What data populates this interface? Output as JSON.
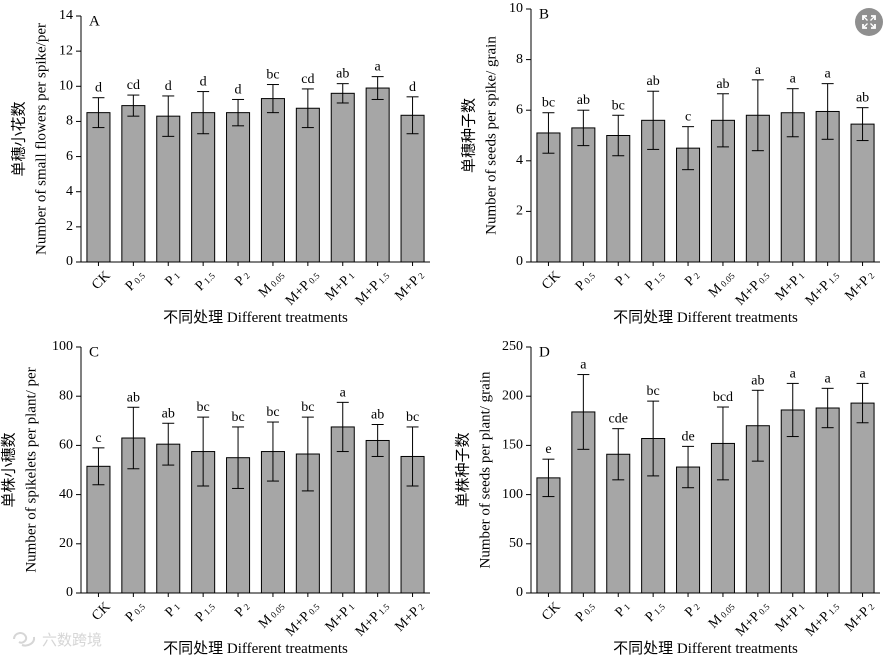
{
  "watermark": {
    "text": "六数跨境",
    "brand_color": "#d6d6d6"
  },
  "expand_button": {
    "icon": "expand-icon",
    "color": "#8f8f8f"
  },
  "style": {
    "bar_fill": "#a6a6a6",
    "bar_stroke": "#000000",
    "text_color": "#000000"
  },
  "chart_data": [
    {
      "panel": "A",
      "type": "bar",
      "ylabel_cn": "单穗小花数",
      "ylabel_en": "Number of small flowers per spike/per",
      "xlabel": "不同处理 Different treatments",
      "ylim": [
        0,
        14
      ],
      "yticks": [
        0,
        2,
        4,
        6,
        8,
        10,
        12,
        14
      ],
      "categories": [
        {
          "base": "CK",
          "sub": ""
        },
        {
          "base": "P",
          "sub": "0.5"
        },
        {
          "base": "P",
          "sub": "1"
        },
        {
          "base": "P",
          "sub": "1.5"
        },
        {
          "base": "P",
          "sub": "2"
        },
        {
          "base": "M",
          "sub": "0.05"
        },
        {
          "base": "M+P",
          "sub": "0.5"
        },
        {
          "base": "M+P",
          "sub": "1"
        },
        {
          "base": "M+P",
          "sub": "1.5"
        },
        {
          "base": "M+P",
          "sub": "2"
        }
      ],
      "values": [
        8.5,
        8.9,
        8.3,
        8.5,
        8.5,
        9.3,
        8.75,
        9.6,
        9.9,
        8.35
      ],
      "errors": [
        0.85,
        0.6,
        1.15,
        1.2,
        0.75,
        0.8,
        1.1,
        0.55,
        0.65,
        1.05
      ],
      "letters": [
        "d",
        "cd",
        "d",
        "d",
        "d",
        "bc",
        "cd",
        "ab",
        "a",
        "d"
      ]
    },
    {
      "panel": "B",
      "type": "bar",
      "ylabel_cn": "单穗种子数",
      "ylabel_en": "Number of seeds per spike/ grain",
      "xlabel": "不同处理 Different treatments",
      "ylim": [
        0,
        10
      ],
      "yticks": [
        0,
        2,
        4,
        6,
        8,
        10
      ],
      "categories": [
        {
          "base": "CK",
          "sub": ""
        },
        {
          "base": "P",
          "sub": "0.5"
        },
        {
          "base": "P",
          "sub": "1"
        },
        {
          "base": "P",
          "sub": "1.5"
        },
        {
          "base": "P",
          "sub": "2"
        },
        {
          "base": "M",
          "sub": "0.05"
        },
        {
          "base": "M+P",
          "sub": "0.5"
        },
        {
          "base": "M+P",
          "sub": "1"
        },
        {
          "base": "M+P",
          "sub": "1.5"
        },
        {
          "base": "M+P",
          "sub": "2"
        }
      ],
      "values": [
        5.1,
        5.3,
        5.0,
        5.6,
        4.5,
        5.6,
        5.8,
        5.9,
        5.95,
        5.45
      ],
      "errors": [
        0.8,
        0.7,
        0.8,
        1.15,
        0.85,
        1.05,
        1.4,
        0.95,
        1.1,
        0.65
      ],
      "letters": [
        "bc",
        "ab",
        "bc",
        "ab",
        "c",
        "ab",
        "a",
        "a",
        "a",
        "ab"
      ]
    },
    {
      "panel": "C",
      "type": "bar",
      "ylabel_cn": "单株小穗数",
      "ylabel_en": "Number of spikelets per plant/ per",
      "xlabel": "不同处理 Different treatments",
      "ylim": [
        0,
        100
      ],
      "yticks": [
        0,
        20,
        40,
        60,
        80,
        100
      ],
      "categories": [
        {
          "base": "CK",
          "sub": ""
        },
        {
          "base": "P",
          "sub": "0.5"
        },
        {
          "base": "P",
          "sub": "1"
        },
        {
          "base": "P",
          "sub": "1.5"
        },
        {
          "base": "P",
          "sub": "2"
        },
        {
          "base": "M",
          "sub": "0.05"
        },
        {
          "base": "M+P",
          "sub": "0.5"
        },
        {
          "base": "M+P",
          "sub": "1"
        },
        {
          "base": "M+P",
          "sub": "1.5"
        },
        {
          "base": "M+P",
          "sub": "2"
        }
      ],
      "values": [
        51.5,
        63,
        60.5,
        57.5,
        55,
        57.5,
        56.5,
        67.5,
        62,
        55.5
      ],
      "errors": [
        7.5,
        12.5,
        8.5,
        14,
        12.5,
        12,
        15,
        10,
        6.5,
        12
      ],
      "letters": [
        "c",
        "ab",
        "ab",
        "bc",
        "bc",
        "bc",
        "bc",
        "a",
        "ab",
        "bc"
      ]
    },
    {
      "panel": "D",
      "type": "bar",
      "ylabel_cn": "单株种子数",
      "ylabel_en": "Number of seeds per plant/ grain",
      "xlabel": "不同处理 Different treatments",
      "ylim": [
        0,
        250
      ],
      "yticks": [
        0,
        50,
        100,
        150,
        200,
        250
      ],
      "categories": [
        {
          "base": "CK",
          "sub": ""
        },
        {
          "base": "P",
          "sub": "0.5"
        },
        {
          "base": "P",
          "sub": "1"
        },
        {
          "base": "P",
          "sub": "1.5"
        },
        {
          "base": "P",
          "sub": "2"
        },
        {
          "base": "M",
          "sub": "0.05"
        },
        {
          "base": "M+P",
          "sub": "0.5"
        },
        {
          "base": "M+P",
          "sub": "1"
        },
        {
          "base": "M+P",
          "sub": "1.5"
        },
        {
          "base": "M+P",
          "sub": "2"
        }
      ],
      "values": [
        117,
        184,
        141,
        157,
        128,
        152,
        170,
        186,
        188,
        193
      ],
      "errors": [
        19,
        38,
        26,
        38,
        21,
        37,
        36,
        27,
        20,
        20
      ],
      "letters": [
        "e",
        "a",
        "cde",
        "bc",
        "de",
        "bcd",
        "ab",
        "a",
        "a",
        "a"
      ]
    }
  ]
}
